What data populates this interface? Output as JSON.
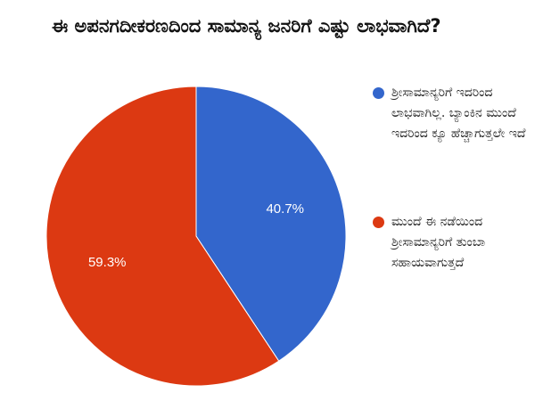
{
  "chart_data": {
    "type": "pie",
    "title": "ಈ ಅಪನಗದೀಕರಣದಿಂದ ಸಾಮಾನ್ಯ ಜನರಿಗೆ ಎಷ್ಟು ಲಾಭವಾಗಿದೆ?",
    "categories": [
      "ಶ್ರೀಸಾಮಾನ್ಯರಿಗೆ ಇದರಿಂದ ಲಾಭವಾಗಿಲ್ಲ. ಬ್ಯಾಂಕಿನ ಮುಂದೆ ಇದರಿಂದ ಕ್ಯೂ ಹೆಚ್ಚಾಗುತ್ತಲೇ ಇದೆ",
      "ಮುಂದೆ ಈ ನಡೆಯಿಂದ ಶ್ರೀಸಾಮಾನ್ಯರಿಗೆ ತುಂಬಾ ಸಹಾಯವಾಗುತ್ತದೆ"
    ],
    "values": [
      40.7,
      59.3
    ],
    "value_labels": [
      "40.7%",
      "59.3%"
    ],
    "colors": [
      "#3366cc",
      "#dc3912"
    ],
    "legend": "right"
  }
}
